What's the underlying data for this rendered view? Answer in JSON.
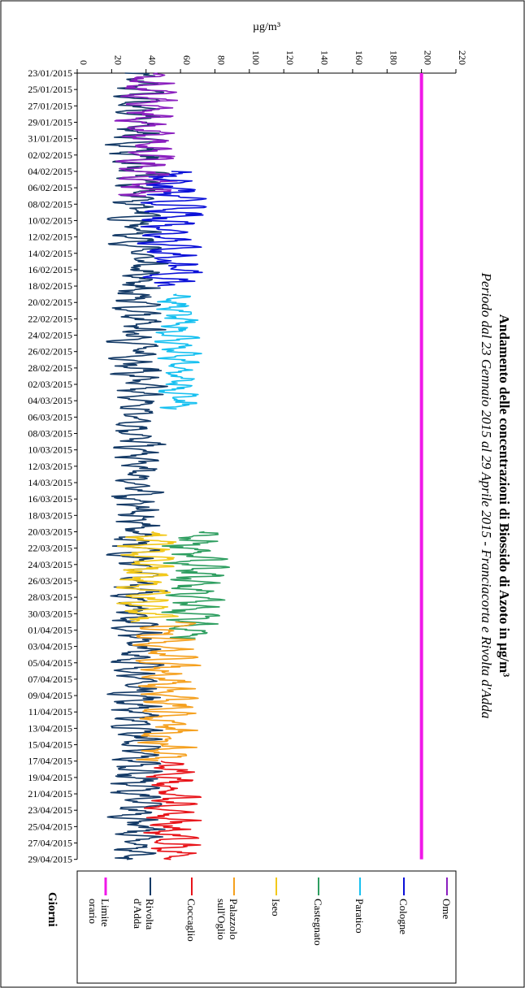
{
  "chart_data": {
    "type": "line",
    "title": "Andamento delle concentrazioni di Biossido di Azoto in µg/m³",
    "subtitle": "Periodo dal 23 Gennaio 2015 al 29 Aprile 2015 - Franciacorta e Rivolta d'Adda",
    "ylabel": "µg/m³",
    "xlabel": "Giorni",
    "ylim": [
      0,
      220
    ],
    "yticks": [
      0,
      20,
      40,
      60,
      80,
      100,
      120,
      140,
      160,
      180,
      200,
      220
    ],
    "xticks": [
      "23/01/2015",
      "25/01/2015",
      "27/01/2015",
      "29/01/2015",
      "31/01/2015",
      "02/02/2015",
      "04/02/2015",
      "06/02/2015",
      "08/02/2015",
      "10/02/2015",
      "12/02/2015",
      "14/02/2015",
      "16/02/2015",
      "18/02/2015",
      "20/02/2015",
      "22/02/2015",
      "24/02/2015",
      "26/02/2015",
      "28/02/2015",
      "02/03/2015",
      "04/03/2015",
      "06/03/2015",
      "08/03/2015",
      "10/03/2015",
      "12/03/2015",
      "14/03/2015",
      "16/03/2015",
      "18/03/2015",
      "20/03/2015",
      "22/03/2015",
      "24/03/2015",
      "26/03/2015",
      "28/03/2015",
      "30/03/2015",
      "01/04/2015",
      "03/04/2015",
      "05/04/2015",
      "07/04/2015",
      "09/04/2015",
      "11/04/2015",
      "13/04/2015",
      "15/04/2015",
      "17/04/2015",
      "19/04/2015",
      "21/04/2015",
      "23/04/2015",
      "25/04/2015",
      "27/04/2015",
      "29/04/2015"
    ],
    "grid": false,
    "legend_position": "bottom",
    "series": [
      {
        "name": "Ome",
        "color": "#8B1FBF",
        "start_day": 0,
        "end_day": 15,
        "mean": 40,
        "amp": 18
      },
      {
        "name": "Cologne",
        "color": "#0A10D8",
        "start_day": 12,
        "end_day": 26,
        "mean": 55,
        "amp": 20
      },
      {
        "name": "Paratico",
        "color": "#17C0F0",
        "start_day": 27,
        "end_day": 41,
        "mean": 58,
        "amp": 14
      },
      {
        "name": "Castegnato",
        "color": "#2E9E60",
        "start_day": 56,
        "end_day": 69,
        "mean": 68,
        "amp": 18
      },
      {
        "name": "Iseo",
        "color": "#F2C81A",
        "start_day": 56,
        "end_day": 67,
        "mean": 40,
        "amp": 18
      },
      {
        "name": "Palazzolo sull'Oglio",
        "color": "#F5A01E",
        "start_day": 67,
        "end_day": 84,
        "mean": 52,
        "amp": 18
      },
      {
        "name": "Coccaglio",
        "color": "#E8141A",
        "start_day": 84,
        "end_day": 96,
        "mean": 55,
        "amp": 18
      },
      {
        "name": "Rivolta d'Adda",
        "color": "#143A66",
        "start_day": 0,
        "end_day": 96,
        "mean": 35,
        "amp": 16
      },
      {
        "name": "Limite orario",
        "color": "#F018E8",
        "start_day": 0,
        "end_day": 96,
        "constant": 200
      }
    ]
  },
  "legend": [
    {
      "lines": [
        "Ome"
      ],
      "color": "#8B1FBF"
    },
    {
      "lines": [
        "Cologne"
      ],
      "color": "#0A10D8"
    },
    {
      "lines": [
        "Paratico"
      ],
      "color": "#17C0F0"
    },
    {
      "lines": [
        "Castegnato"
      ],
      "color": "#2E9E60"
    },
    {
      "lines": [
        "Iseo"
      ],
      "color": "#F2C81A"
    },
    {
      "lines": [
        "Palazzolo",
        "sull'Oglio"
      ],
      "color": "#F5A01E"
    },
    {
      "lines": [
        "Coccaglio"
      ],
      "color": "#E8141A"
    },
    {
      "lines": [
        "Rivolta",
        "d'Adda"
      ],
      "color": "#143A66"
    },
    {
      "lines": [
        "Limite",
        "orario"
      ],
      "color": "#F018E8"
    }
  ]
}
